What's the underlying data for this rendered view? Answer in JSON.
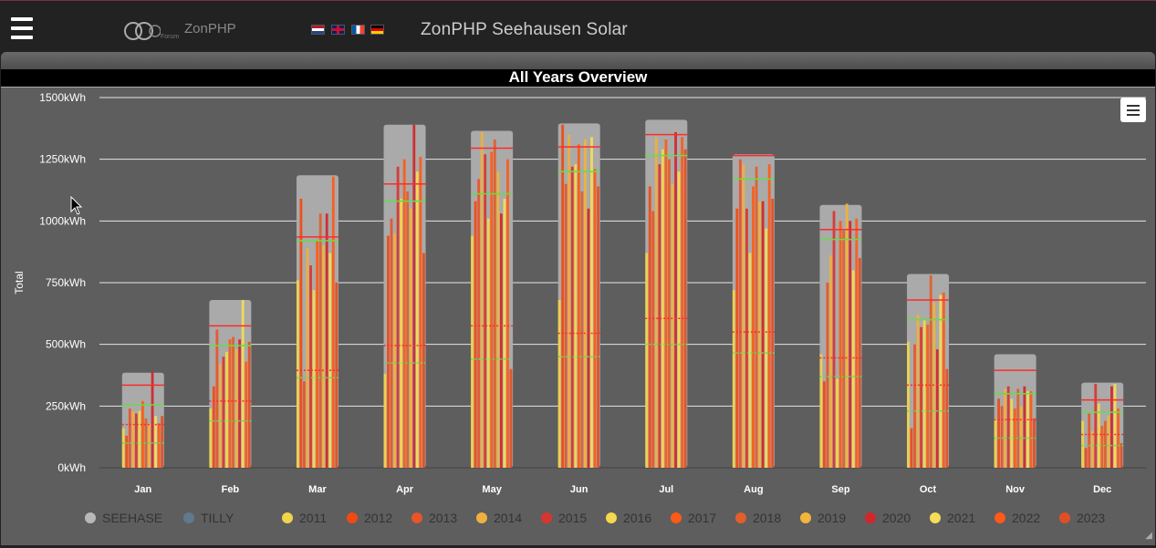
{
  "header": {
    "menu_icon": "hamburger-icon",
    "logo_text": "ZonPHP",
    "logo_sub": "Forum",
    "title": "ZonPHP Seehausen Solar",
    "flags": [
      {
        "name": "flag-nl",
        "colors": [
          "#ae1c28",
          "#ffffff",
          "#21468b"
        ]
      },
      {
        "name": "flag-gb",
        "colors": [
          "#012169",
          "#ffffff",
          "#c8102e"
        ]
      },
      {
        "name": "flag-fr",
        "colors": [
          "#0055a4",
          "#ffffff",
          "#ef4135"
        ]
      },
      {
        "name": "flag-de",
        "colors": [
          "#000000",
          "#dd0000",
          "#ffce00"
        ]
      }
    ]
  },
  "panel": {
    "title": "All Years Overview",
    "menu_icon": "hamburger-icon"
  },
  "chart_data": {
    "type": "bar",
    "title": "All Years Overview",
    "ylabel": "Total",
    "ylim": [
      0,
      1500
    ],
    "yticks": [
      "0kWh",
      "250kWh",
      "500kWh",
      "750kWh",
      "1000kWh",
      "1250kWh",
      "1500kWh"
    ],
    "categories": [
      "Jan",
      "Feb",
      "Mar",
      "Apr",
      "May",
      "Jun",
      "Jul",
      "Aug",
      "Sep",
      "Oct",
      "Nov",
      "Dec"
    ],
    "grid": true,
    "legend_position": "bottom",
    "totals": [
      385,
      680,
      1185,
      1390,
      1365,
      1395,
      1410,
      1270,
      1065,
      785,
      460,
      345
    ],
    "references": {
      "red_upper": [
        335,
        575,
        935,
        1150,
        1295,
        1300,
        1350,
        1265,
        965,
        680,
        395,
        275
      ],
      "green_upper": [
        255,
        495,
        920,
        1080,
        1110,
        1200,
        1265,
        1170,
        925,
        600,
        300,
        225
      ],
      "red_lower": [
        175,
        270,
        395,
        495,
        575,
        545,
        605,
        550,
        445,
        335,
        195,
        135
      ],
      "green_lower": [
        100,
        190,
        365,
        425,
        440,
        450,
        500,
        465,
        370,
        230,
        120,
        90
      ]
    },
    "series": [
      {
        "name": "SEEHASE",
        "color": "#b8b8b8"
      },
      {
        "name": "TILLY",
        "color": "#5f7a8e"
      },
      {
        "name": "2011",
        "color": "#f2d44b",
        "values": [
          160,
          240,
          760,
          380,
          940,
          680,
          870,
          720,
          460,
          510,
          200,
          190
        ]
      },
      {
        "name": "2012",
        "color": "#f04a12",
        "values": [
          130,
          330,
          1090,
          940,
          1080,
          1390,
          1140,
          1050,
          350,
          160,
          280,
          80
        ]
      },
      {
        "name": "2013",
        "color": "#e9542a",
        "values": [
          240,
          560,
          350,
          1010,
          1170,
          1150,
          1040,
          1250,
          750,
          500,
          250,
          220
        ]
      },
      {
        "name": "2014",
        "color": "#f0b040",
        "values": [
          230,
          420,
          890,
          950,
          1360,
          1350,
          1340,
          1230,
          860,
          620,
          320,
          150
        ]
      },
      {
        "name": "2015",
        "color": "#d93530",
        "values": [
          220,
          450,
          820,
          1220,
          1270,
          1220,
          1230,
          1050,
          1040,
          570,
          330,
          340
        ]
      },
      {
        "name": "2016",
        "color": "#f5d84c",
        "values": [
          230,
          470,
          720,
          1090,
          1010,
          1230,
          1290,
          870,
          360,
          600,
          280,
          260
        ]
      },
      {
        "name": "2017",
        "color": "#ff5a14",
        "values": [
          270,
          520,
          920,
          1250,
          1280,
          1310,
          1330,
          1140,
          1000,
          580,
          240,
          170
        ]
      },
      {
        "name": "2018",
        "color": "#e25e2a",
        "values": [
          200,
          530,
          1030,
          1120,
          1330,
          1120,
          1250,
          1220,
          960,
          780,
          320,
          190
        ]
      },
      {
        "name": "2019",
        "color": "#f2b43a",
        "values": [
          180,
          480,
          900,
          1050,
          1200,
          1330,
          1150,
          1080,
          1070,
          670,
          250,
          210
        ]
      },
      {
        "name": "2020",
        "color": "#d0262c",
        "values": [
          390,
          520,
          1030,
          1390,
          1030,
          1050,
          1360,
          1080,
          1000,
          480,
          330,
          330
        ]
      },
      {
        "name": "2021",
        "color": "#f6dd55",
        "values": [
          210,
          680,
          870,
          1200,
          1090,
          1340,
          1200,
          970,
          800,
          700,
          310,
          340
        ]
      },
      {
        "name": "2022",
        "color": "#ff5a18",
        "values": [
          180,
          430,
          1180,
          1260,
          1250,
          1210,
          1340,
          1230,
          1010,
          710,
          310,
          240
        ]
      },
      {
        "name": "2023",
        "color": "#e24e24",
        "values": [
          210,
          510,
          750,
          870,
          400,
          1140,
          1290,
          1090,
          850,
          400,
          200,
          100
        ]
      }
    ]
  }
}
